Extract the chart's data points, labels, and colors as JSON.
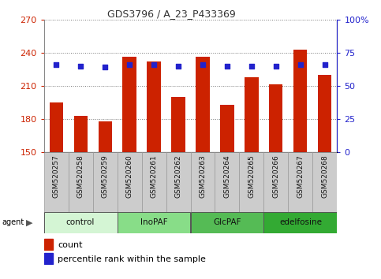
{
  "title": "GDS3796 / A_23_P433369",
  "samples": [
    "GSM520257",
    "GSM520258",
    "GSM520259",
    "GSM520260",
    "GSM520261",
    "GSM520262",
    "GSM520263",
    "GSM520264",
    "GSM520265",
    "GSM520266",
    "GSM520267",
    "GSM520268"
  ],
  "counts": [
    195,
    183,
    178,
    236,
    232,
    200,
    236,
    193,
    218,
    211,
    243,
    220
  ],
  "percentiles": [
    66,
    65,
    64,
    66,
    66,
    65,
    66,
    65,
    65,
    65,
    66,
    66
  ],
  "groups": [
    {
      "label": "control",
      "color": "#d4f5d4",
      "start": 0,
      "end": 3
    },
    {
      "label": "InoPAF",
      "color": "#88dd88",
      "start": 3,
      "end": 6
    },
    {
      "label": "GlcPAF",
      "color": "#55bb55",
      "start": 6,
      "end": 9
    },
    {
      "label": "edelfosine",
      "color": "#33aa33",
      "start": 9,
      "end": 12
    }
  ],
  "ylim_left": [
    150,
    270
  ],
  "ylim_right": [
    0,
    100
  ],
  "yticks_left": [
    150,
    180,
    210,
    240,
    270
  ],
  "yticks_right": [
    0,
    25,
    50,
    75,
    100
  ],
  "ytick_labels_right": [
    "0",
    "25",
    "50",
    "75",
    "100%"
  ],
  "bar_color": "#cc2200",
  "dot_color": "#2222cc",
  "bar_width": 0.55,
  "left_tick_color": "#cc2200",
  "right_tick_color": "#2222cc"
}
